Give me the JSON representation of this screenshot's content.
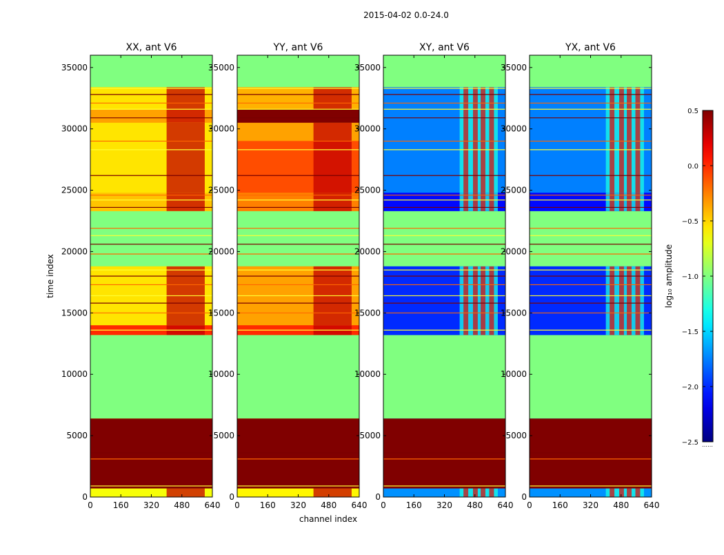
{
  "figure": {
    "suptitle": "2015-04-02 0.0-24.0",
    "xlabel": "channel index",
    "ylabel": "time index"
  },
  "chart_data": {
    "type": "heatmap",
    "colormap": "jet",
    "x_range": [
      0,
      640
    ],
    "y_range": [
      0,
      36000
    ],
    "x_ticks": [
      0,
      160,
      320,
      480,
      640
    ],
    "y_ticks": [
      0,
      5000,
      10000,
      15000,
      20000,
      25000,
      30000,
      35000
    ],
    "color_range": [
      -2.5,
      0.5
    ],
    "colorbar": {
      "label": "log₁₀ amplitude",
      "ticks": [
        0.5,
        0.0,
        -0.5,
        -1.0,
        -1.5,
        -2.0,
        -2.5
      ],
      "tick_labels": [
        "0.5",
        "0.0",
        "−0.5",
        "−1.0",
        "−1.5",
        "−2.0",
        "−2.5"
      ]
    },
    "panels": [
      {
        "title": "XX, ant V6",
        "base_level": -0.5,
        "bands": [
          {
            "y0": 0,
            "y1": 700,
            "level": -0.65
          },
          {
            "y0": 700,
            "y1": 6400,
            "level": 0.5
          },
          {
            "y0": 6400,
            "y1": 13200,
            "level": -1.0
          },
          {
            "y0": 13200,
            "y1": 14000,
            "level": 0.0
          },
          {
            "y0": 14000,
            "y1": 18800,
            "level": -0.55
          },
          {
            "y0": 18800,
            "y1": 23300,
            "level": -1.0
          },
          {
            "y0": 23300,
            "y1": 24800,
            "level": -0.45
          },
          {
            "y0": 24800,
            "y1": 30500,
            "level": -0.55
          },
          {
            "y0": 30500,
            "y1": 31600,
            "level": -0.35
          },
          {
            "y0": 31600,
            "y1": 33400,
            "level": -0.55
          },
          {
            "y0": 33400,
            "y1": 36000,
            "level": -1.0
          }
        ]
      },
      {
        "title": "YY, ant V6",
        "base_level": -0.25,
        "bands": [
          {
            "y0": 0,
            "y1": 700,
            "level": -0.6
          },
          {
            "y0": 700,
            "y1": 6400,
            "level": 0.5
          },
          {
            "y0": 6400,
            "y1": 13200,
            "level": -1.0
          },
          {
            "y0": 13200,
            "y1": 14000,
            "level": 0.0
          },
          {
            "y0": 14000,
            "y1": 18800,
            "level": -0.35
          },
          {
            "y0": 18800,
            "y1": 23300,
            "level": -1.0
          },
          {
            "y0": 23300,
            "y1": 24800,
            "level": -0.25
          },
          {
            "y0": 24800,
            "y1": 29000,
            "level": -0.1
          },
          {
            "y0": 29000,
            "y1": 30500,
            "level": -0.35
          },
          {
            "y0": 30500,
            "y1": 31600,
            "level": 0.5
          },
          {
            "y0": 31600,
            "y1": 33400,
            "level": -0.4
          },
          {
            "y0": 33400,
            "y1": 36000,
            "level": -1.0
          }
        ]
      },
      {
        "title": "XY, ant V6",
        "base_level": -1.8,
        "bands": [
          {
            "y0": 0,
            "y1": 700,
            "level": -1.7
          },
          {
            "y0": 700,
            "y1": 6400,
            "level": 0.5
          },
          {
            "y0": 6400,
            "y1": 13200,
            "level": -1.0
          },
          {
            "y0": 13200,
            "y1": 18800,
            "level": -2.0
          },
          {
            "y0": 18800,
            "y1": 23300,
            "level": -1.0
          },
          {
            "y0": 23300,
            "y1": 24800,
            "level": -2.1
          },
          {
            "y0": 24800,
            "y1": 33400,
            "level": -1.75
          },
          {
            "y0": 33400,
            "y1": 36000,
            "level": -1.0
          }
        ]
      },
      {
        "title": "YX, ant V6",
        "base_level": -1.8,
        "bands": [
          {
            "y0": 0,
            "y1": 700,
            "level": -1.7
          },
          {
            "y0": 700,
            "y1": 6400,
            "level": 0.5
          },
          {
            "y0": 6400,
            "y1": 13200,
            "level": -1.0
          },
          {
            "y0": 13200,
            "y1": 18800,
            "level": -2.0
          },
          {
            "y0": 18800,
            "y1": 23300,
            "level": -1.0
          },
          {
            "y0": 23300,
            "y1": 24800,
            "level": -2.1
          },
          {
            "y0": 24800,
            "y1": 33400,
            "level": -1.75
          },
          {
            "y0": 33400,
            "y1": 36000,
            "level": -1.0
          }
        ]
      }
    ],
    "rfi_channel_range": [
      400,
      600
    ],
    "rfi_level": 0.3,
    "horizontal_lines_y": [
      900,
      3100,
      3600,
      13600,
      15000,
      15800,
      16400,
      17300,
      18000,
      18500,
      19800,
      20600,
      21300,
      21900,
      23600,
      24200,
      24600,
      26200,
      28300,
      29000,
      30900,
      31600,
      32100,
      32800,
      33300
    ]
  }
}
